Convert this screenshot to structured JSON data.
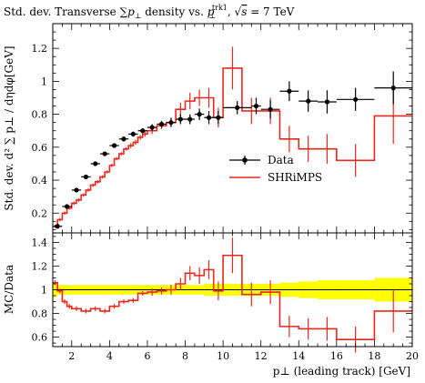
{
  "chart_data": [
    {
      "type": "line",
      "panel": "main",
      "title": "Std. dev. Transverse ∑p⊥ density vs. p⊥trk1, √s = 7 TeV",
      "title_parts": {
        "t1": "Std. dev. Transverse ∑",
        "t2": "p",
        "t3": "⊥",
        "t4": " density vs. ",
        "t5": "p",
        "t6": "⊥",
        "t7": "trk1",
        "t8": ", ",
        "t9": "√",
        "t10": "s",
        "t11": " = 7 TeV"
      },
      "xlabel": "p⊥ (leading track) [GeV]",
      "ylabel": "Std. dev. d² ∑ p⊥ / dηdφ[GeV]",
      "xlim": [
        1,
        20
      ],
      "ylim": [
        0.08,
        1.35
      ],
      "y_ticks": [
        "0.2",
        "0.4",
        "0.6",
        "0.8",
        "1",
        "1.2"
      ],
      "legend": {
        "placement": "center-right",
        "entries": [
          "Data",
          "SHRiMPS"
        ]
      },
      "series": [
        {
          "name": "Data",
          "style": "points-with-error-bars",
          "color": "#000000",
          "points": [
            {
              "x": 1.25,
              "y": 0.12,
              "xerr": 0.25,
              "yerr": 0.01
            },
            {
              "x": 1.75,
              "y": 0.24,
              "xerr": 0.25,
              "yerr": 0.01
            },
            {
              "x": 2.25,
              "y": 0.34,
              "xerr": 0.25,
              "yerr": 0.01
            },
            {
              "x": 2.75,
              "y": 0.42,
              "xerr": 0.25,
              "yerr": 0.01
            },
            {
              "x": 3.25,
              "y": 0.5,
              "xerr": 0.25,
              "yerr": 0.01
            },
            {
              "x": 3.75,
              "y": 0.56,
              "xerr": 0.25,
              "yerr": 0.01
            },
            {
              "x": 4.25,
              "y": 0.61,
              "xerr": 0.25,
              "yerr": 0.01
            },
            {
              "x": 4.75,
              "y": 0.65,
              "xerr": 0.25,
              "yerr": 0.015
            },
            {
              "x": 5.25,
              "y": 0.68,
              "xerr": 0.25,
              "yerr": 0.015
            },
            {
              "x": 5.75,
              "y": 0.7,
              "xerr": 0.25,
              "yerr": 0.015
            },
            {
              "x": 6.25,
              "y": 0.72,
              "xerr": 0.25,
              "yerr": 0.02
            },
            {
              "x": 6.75,
              "y": 0.74,
              "xerr": 0.25,
              "yerr": 0.02
            },
            {
              "x": 7.25,
              "y": 0.75,
              "xerr": 0.25,
              "yerr": 0.025
            },
            {
              "x": 7.75,
              "y": 0.77,
              "xerr": 0.25,
              "yerr": 0.03
            },
            {
              "x": 8.25,
              "y": 0.77,
              "xerr": 0.25,
              "yerr": 0.03
            },
            {
              "x": 8.75,
              "y": 0.8,
              "xerr": 0.25,
              "yerr": 0.035
            },
            {
              "x": 9.25,
              "y": 0.78,
              "xerr": 0.25,
              "yerr": 0.04
            },
            {
              "x": 9.75,
              "y": 0.78,
              "xerr": 0.25,
              "yerr": 0.04
            },
            {
              "x": 10.75,
              "y": 0.84,
              "xerr": 0.75,
              "yerr": 0.04
            },
            {
              "x": 11.75,
              "y": 0.85,
              "xerr": 0.25,
              "yerr": 0.05
            },
            {
              "x": 12.5,
              "y": 0.83,
              "xerr": 0.5,
              "yerr": 0.055
            },
            {
              "x": 13.5,
              "y": 0.94,
              "xerr": 0.5,
              "yerr": 0.06
            },
            {
              "x": 14.5,
              "y": 0.88,
              "xerr": 0.5,
              "yerr": 0.065
            },
            {
              "x": 15.5,
              "y": 0.875,
              "xerr": 0.5,
              "yerr": 0.07
            },
            {
              "x": 17.0,
              "y": 0.89,
              "xerr": 1.0,
              "yerr": 0.07
            },
            {
              "x": 19.0,
              "y": 0.96,
              "xerr": 1.0,
              "yerr": 0.1
            }
          ]
        },
        {
          "name": "SHRiMPS",
          "style": "histogram-with-error-bars",
          "color": "#e8281d",
          "bins": [
            {
              "lo": 1.0,
              "hi": 1.25,
              "y": 0.12,
              "err": 0.01
            },
            {
              "lo": 1.25,
              "hi": 1.5,
              "y": 0.16,
              "err": 0.01
            },
            {
              "lo": 1.5,
              "hi": 1.75,
              "y": 0.2,
              "err": 0.01
            },
            {
              "lo": 1.75,
              "hi": 2.0,
              "y": 0.23,
              "err": 0.01
            },
            {
              "lo": 2.0,
              "hi": 2.25,
              "y": 0.26,
              "err": 0.01
            },
            {
              "lo": 2.25,
              "hi": 2.5,
              "y": 0.28,
              "err": 0.01
            },
            {
              "lo": 2.5,
              "hi": 2.75,
              "y": 0.31,
              "err": 0.01
            },
            {
              "lo": 2.75,
              "hi": 3.0,
              "y": 0.34,
              "err": 0.01
            },
            {
              "lo": 3.0,
              "hi": 3.25,
              "y": 0.37,
              "err": 0.01
            },
            {
              "lo": 3.25,
              "hi": 3.5,
              "y": 0.39,
              "err": 0.01
            },
            {
              "lo": 3.5,
              "hi": 3.75,
              "y": 0.42,
              "err": 0.01
            },
            {
              "lo": 3.75,
              "hi": 4.0,
              "y": 0.45,
              "err": 0.01
            },
            {
              "lo": 4.0,
              "hi": 4.25,
              "y": 0.49,
              "err": 0.01
            },
            {
              "lo": 4.25,
              "hi": 4.5,
              "y": 0.53,
              "err": 0.01
            },
            {
              "lo": 4.5,
              "hi": 4.75,
              "y": 0.56,
              "err": 0.01
            },
            {
              "lo": 4.75,
              "hi": 5.0,
              "y": 0.59,
              "err": 0.01
            },
            {
              "lo": 5.0,
              "hi": 5.25,
              "y": 0.61,
              "err": 0.015
            },
            {
              "lo": 5.25,
              "hi": 5.5,
              "y": 0.63,
              "err": 0.015
            },
            {
              "lo": 5.5,
              "hi": 5.75,
              "y": 0.66,
              "err": 0.015
            },
            {
              "lo": 5.75,
              "hi": 6.0,
              "y": 0.68,
              "err": 0.015
            },
            {
              "lo": 6.0,
              "hi": 6.5,
              "y": 0.7,
              "err": 0.02
            },
            {
              "lo": 6.5,
              "hi": 7.0,
              "y": 0.73,
              "err": 0.02
            },
            {
              "lo": 7.0,
              "hi": 7.5,
              "y": 0.75,
              "err": 0.03
            },
            {
              "lo": 7.5,
              "hi": 8.0,
              "y": 0.83,
              "err": 0.04
            },
            {
              "lo": 8.0,
              "hi": 8.5,
              "y": 0.88,
              "err": 0.05
            },
            {
              "lo": 8.5,
              "hi": 9.0,
              "y": 0.9,
              "err": 0.05
            },
            {
              "lo": 9.0,
              "hi": 9.5,
              "y": 0.9,
              "err": 0.06
            },
            {
              "lo": 9.5,
              "hi": 10.0,
              "y": 0.78,
              "err": 0.06
            },
            {
              "lo": 10.0,
              "hi": 11.0,
              "y": 1.08,
              "err": 0.13
            },
            {
              "lo": 11.0,
              "hi": 12.0,
              "y": 0.82,
              "err": 0.08
            },
            {
              "lo": 12.0,
              "hi": 13.0,
              "y": 0.82,
              "err": 0.08
            },
            {
              "lo": 13.0,
              "hi": 14.0,
              "y": 0.65,
              "err": 0.08
            },
            {
              "lo": 14.0,
              "hi": 15.0,
              "y": 0.59,
              "err": 0.08
            },
            {
              "lo": 15.0,
              "hi": 16.0,
              "y": 0.59,
              "err": 0.09
            },
            {
              "lo": 16.0,
              "hi": 18.0,
              "y": 0.52,
              "err": 0.1
            },
            {
              "lo": 18.0,
              "hi": 20.0,
              "y": 0.79,
              "err": 0.17
            }
          ]
        }
      ]
    },
    {
      "type": "line",
      "panel": "ratio",
      "ylabel": "MC/Data",
      "xlabel": "p⊥ (leading track) [GeV]",
      "xlim": [
        1,
        20
      ],
      "ylim": [
        0.52,
        1.48
      ],
      "x_ticks": [
        "2",
        "4",
        "6",
        "8",
        "10",
        "12",
        "14",
        "16",
        "18",
        "20"
      ],
      "y_ticks": [
        "0.6",
        "0.8",
        "1",
        "1.2",
        "1.4"
      ],
      "band_color": "#ffff00",
      "data_band": [
        {
          "lo": 1.0,
          "hi": 1.25,
          "err": 0.06
        },
        {
          "lo": 1.25,
          "hi": 9.0,
          "err": 0.04
        },
        {
          "lo": 9.0,
          "hi": 10.0,
          "err": 0.05
        },
        {
          "lo": 10.0,
          "hi": 13.0,
          "err": 0.05
        },
        {
          "lo": 13.0,
          "hi": 14.0,
          "err": 0.06
        },
        {
          "lo": 14.0,
          "hi": 15.0,
          "err": 0.07
        },
        {
          "lo": 15.0,
          "hi": 16.0,
          "err": 0.08
        },
        {
          "lo": 16.0,
          "hi": 18.0,
          "err": 0.08
        },
        {
          "lo": 18.0,
          "hi": 20.0,
          "err": 0.1
        }
      ],
      "series": [
        {
          "name": "SHRiMPS",
          "color": "#e8281d",
          "bins": [
            {
              "lo": 1.0,
              "hi": 1.25,
              "y": 1.06,
              "err": 0.02
            },
            {
              "lo": 1.25,
              "hi": 1.5,
              "y": 0.99,
              "err": 0.02
            },
            {
              "lo": 1.5,
              "hi": 1.75,
              "y": 0.9,
              "err": 0.02
            },
            {
              "lo": 1.75,
              "hi": 2.0,
              "y": 0.86,
              "err": 0.02
            },
            {
              "lo": 2.0,
              "hi": 2.5,
              "y": 0.84,
              "err": 0.02
            },
            {
              "lo": 2.5,
              "hi": 3.0,
              "y": 0.82,
              "err": 0.02
            },
            {
              "lo": 3.0,
              "hi": 3.5,
              "y": 0.84,
              "err": 0.02
            },
            {
              "lo": 3.5,
              "hi": 4.0,
              "y": 0.82,
              "err": 0.02
            },
            {
              "lo": 4.0,
              "hi": 4.5,
              "y": 0.86,
              "err": 0.02
            },
            {
              "lo": 4.5,
              "hi": 5.0,
              "y": 0.9,
              "err": 0.02
            },
            {
              "lo": 5.0,
              "hi": 5.5,
              "y": 0.91,
              "err": 0.02
            },
            {
              "lo": 5.5,
              "hi": 6.0,
              "y": 0.97,
              "err": 0.02
            },
            {
              "lo": 6.0,
              "hi": 6.5,
              "y": 0.98,
              "err": 0.03
            },
            {
              "lo": 6.5,
              "hi": 7.0,
              "y": 0.99,
              "err": 0.03
            },
            {
              "lo": 7.0,
              "hi": 7.5,
              "y": 1.0,
              "err": 0.04
            },
            {
              "lo": 7.5,
              "hi": 8.0,
              "y": 1.05,
              "err": 0.05
            },
            {
              "lo": 8.0,
              "hi": 8.5,
              "y": 1.14,
              "err": 0.06
            },
            {
              "lo": 8.5,
              "hi": 9.0,
              "y": 1.12,
              "err": 0.07
            },
            {
              "lo": 9.0,
              "hi": 9.5,
              "y": 1.17,
              "err": 0.08
            },
            {
              "lo": 9.5,
              "hi": 10.0,
              "y": 0.99,
              "err": 0.08
            },
            {
              "lo": 10.0,
              "hi": 11.0,
              "y": 1.29,
              "err": 0.15
            },
            {
              "lo": 11.0,
              "hi": 12.0,
              "y": 0.96,
              "err": 0.1
            },
            {
              "lo": 12.0,
              "hi": 13.0,
              "y": 0.98,
              "err": 0.1
            },
            {
              "lo": 13.0,
              "hi": 14.0,
              "y": 0.69,
              "err": 0.09
            },
            {
              "lo": 14.0,
              "hi": 15.0,
              "y": 0.67,
              "err": 0.09
            },
            {
              "lo": 15.0,
              "hi": 16.0,
              "y": 0.67,
              "err": 0.1
            },
            {
              "lo": 16.0,
              "hi": 18.0,
              "y": 0.58,
              "err": 0.11
            },
            {
              "lo": 18.0,
              "hi": 20.0,
              "y": 0.82,
              "err": 0.18
            }
          ]
        }
      ]
    }
  ]
}
